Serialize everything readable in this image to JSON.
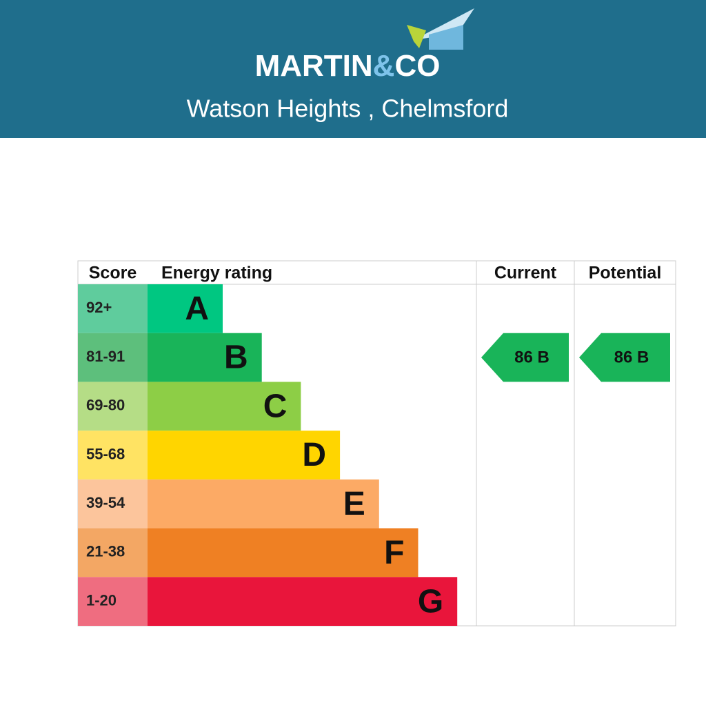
{
  "header": {
    "logo": [
      "MARTIN",
      "&",
      "CO"
    ],
    "subtitle": "Watson Heights , Chelmsford"
  },
  "table": {
    "columns": [
      "Score",
      "Energy rating",
      "Current",
      "Potential"
    ],
    "bands": [
      {
        "score": "92+",
        "letter": "A",
        "color": "#00c781",
        "score_color": "#5fcc9d"
      },
      {
        "score": "81-91",
        "letter": "B",
        "color": "#19b459",
        "score_color": "#5dbf7c"
      },
      {
        "score": "69-80",
        "letter": "C",
        "color": "#8dce46",
        "score_color": "#b5dd86"
      },
      {
        "score": "55-68",
        "letter": "D",
        "color": "#ffd500",
        "score_color": "#ffe363"
      },
      {
        "score": "39-54",
        "letter": "E",
        "color": "#fcaa65",
        "score_color": "#fcc59c"
      },
      {
        "score": "21-38",
        "letter": "F",
        "color": "#ef8023",
        "score_color": "#f3a764"
      },
      {
        "score": "1-20",
        "letter": "G",
        "color": "#e9153b",
        "score_color": "#ef6d80"
      }
    ],
    "current": {
      "label": "86 B",
      "band": 1,
      "color": "#19b459"
    },
    "potential": {
      "label": "86 B",
      "band": 1,
      "color": "#19b459"
    }
  }
}
